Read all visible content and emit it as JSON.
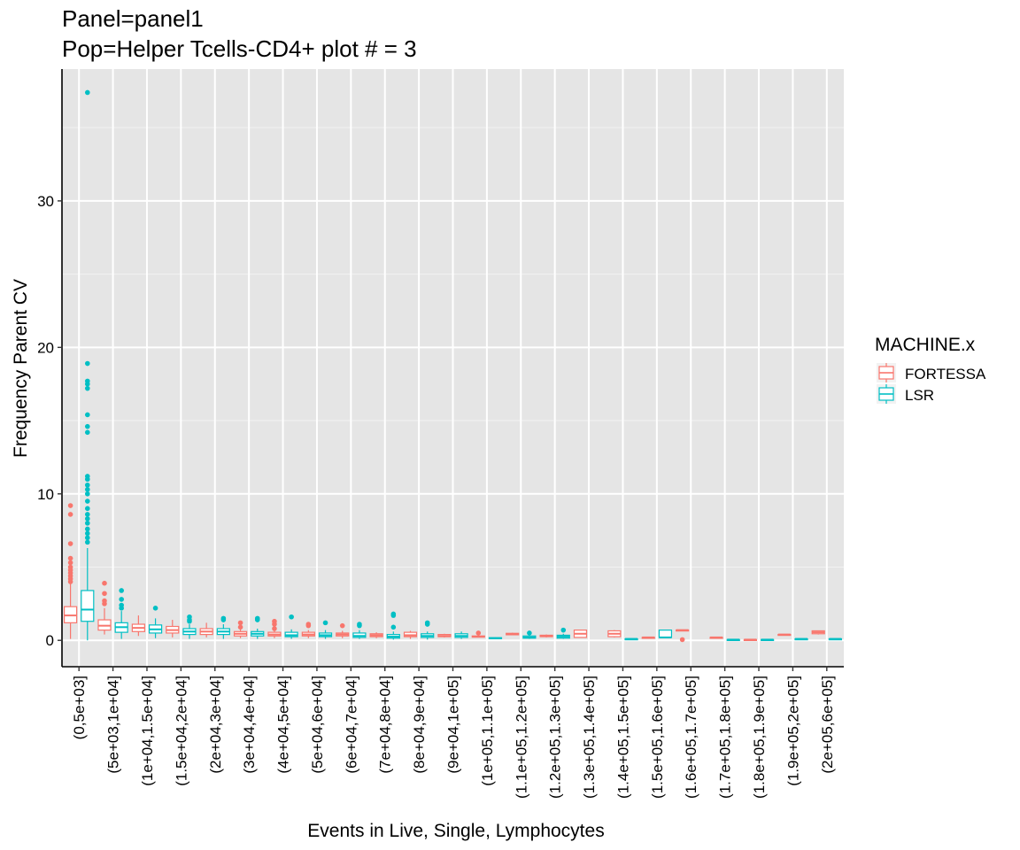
{
  "chart_data": {
    "type": "box",
    "title": "Panel=panel1",
    "subtitle": "Pop=Helper Tcells-CD4+ plot # = 3",
    "xlabel": "Events in Live, Single, Lymphocytes",
    "ylabel": "Frequency Parent CV",
    "ylim": [
      -1.8,
      39
    ],
    "yticks": [
      0,
      10,
      20,
      30
    ],
    "grid": true,
    "legend": {
      "title": "MACHINE.x",
      "position": "right"
    },
    "categories": [
      "(0,5e+03]",
      "(5e+03,1e+04]",
      "(1e+04,1.5e+04]",
      "(1.5e+04,2e+04]",
      "(2e+04,3e+04]",
      "(3e+04,4e+04]",
      "(4e+04,5e+04]",
      "(5e+04,6e+04]",
      "(6e+04,7e+04]",
      "(7e+04,8e+04]",
      "(8e+04,9e+04]",
      "(9e+04,1e+05]",
      "(1e+05,1.1e+05]",
      "(1.1e+05,1.2e+05]",
      "(1.2e+05,1.3e+05]",
      "(1.3e+05,1.4e+05]",
      "(1.4e+05,1.5e+05]",
      "(1.5e+05,1.6e+05]",
      "(1.6e+05,1.7e+05]",
      "(1.7e+05,1.8e+05]",
      "(1.8e+05,1.9e+05]",
      "(1.9e+05,2e+05]",
      "(2e+05,6e+05]"
    ],
    "series": [
      {
        "name": "FORTESSA",
        "color": "#F8766D",
        "boxes": [
          {
            "category": "(0,5e+03]",
            "min": 0.1,
            "q1": 1.2,
            "median": 1.7,
            "q3": 2.3,
            "max": 3.9,
            "outliers": [
              4.0,
              4.2,
              4.4,
              4.6,
              4.8,
              5.0,
              5.3,
              5.6,
              6.6,
              8.6,
              9.2
            ]
          },
          {
            "category": "(5e+03,1e+04]",
            "min": 0.4,
            "q1": 0.7,
            "median": 1.0,
            "q3": 1.4,
            "max": 2.2,
            "outliers": [
              2.5,
              2.7,
              3.2,
              3.9
            ]
          },
          {
            "category": "(1e+04,1.5e+04]",
            "min": 0.3,
            "q1": 0.6,
            "median": 0.85,
            "q3": 1.1,
            "max": 1.7,
            "outliers": []
          },
          {
            "category": "(1.5e+04,2e+04]",
            "min": 0.2,
            "q1": 0.5,
            "median": 0.7,
            "q3": 0.95,
            "max": 1.4,
            "outliers": []
          },
          {
            "category": "(2e+04,3e+04]",
            "min": 0.2,
            "q1": 0.4,
            "median": 0.6,
            "q3": 0.8,
            "max": 1.2,
            "outliers": []
          },
          {
            "category": "(3e+04,4e+04]",
            "min": 0.15,
            "q1": 0.3,
            "median": 0.45,
            "q3": 0.6,
            "max": 0.8,
            "outliers": [
              0.9,
              1.2
            ]
          },
          {
            "category": "(4e+04,5e+04]",
            "min": 0.15,
            "q1": 0.3,
            "median": 0.4,
            "q3": 0.55,
            "max": 0.7,
            "outliers": [
              0.8,
              1.1,
              1.3
            ]
          },
          {
            "category": "(5e+04,6e+04]",
            "min": 0.15,
            "q1": 0.3,
            "median": 0.4,
            "q3": 0.55,
            "max": 0.7,
            "outliers": [
              1.0,
              1.1
            ]
          },
          {
            "category": "(6e+04,7e+04]",
            "min": 0.15,
            "q1": 0.3,
            "median": 0.4,
            "q3": 0.5,
            "max": 0.65,
            "outliers": [
              1.0
            ]
          },
          {
            "category": "(7e+04,8e+04]",
            "min": 0.15,
            "q1": 0.25,
            "median": 0.35,
            "q3": 0.45,
            "max": 0.55,
            "outliers": []
          },
          {
            "category": "(8e+04,9e+04]",
            "min": 0.1,
            "q1": 0.25,
            "median": 0.35,
            "q3": 0.55,
            "max": 0.65,
            "outliers": []
          },
          {
            "category": "(9e+04,1e+05]",
            "min": 0.2,
            "q1": 0.25,
            "median": 0.3,
            "q3": 0.4,
            "max": 0.45,
            "outliers": []
          },
          {
            "category": "(1e+05,1.1e+05]",
            "min": 0.2,
            "q1": 0.22,
            "median": 0.25,
            "q3": 0.3,
            "max": 0.35,
            "outliers": [
              0.5
            ]
          },
          {
            "category": "(1.1e+05,1.2e+05]",
            "min": 0.35,
            "q1": 0.38,
            "median": 0.42,
            "q3": 0.48,
            "max": 0.52,
            "outliers": []
          },
          {
            "category": "(1.2e+05,1.3e+05]",
            "min": 0.2,
            "q1": 0.25,
            "median": 0.3,
            "q3": 0.35,
            "max": 0.4,
            "outliers": []
          },
          {
            "category": "(1.3e+05,1.4e+05]",
            "min": 0.2,
            "q1": 0.2,
            "median": 0.45,
            "q3": 0.7,
            "max": 0.7,
            "outliers": []
          },
          {
            "category": "(1.4e+05,1.5e+05]",
            "min": 0.2,
            "q1": 0.25,
            "median": 0.45,
            "q3": 0.65,
            "max": 0.7,
            "outliers": []
          },
          {
            "category": "(1.5e+05,1.6e+05]",
            "min": 0.2,
            "q1": 0.2,
            "median": 0.2,
            "q3": 0.2,
            "max": 0.2,
            "outliers": []
          },
          {
            "category": "(1.6e+05,1.7e+05]",
            "min": 0.7,
            "q1": 0.7,
            "median": 0.7,
            "q3": 0.7,
            "max": 0.7,
            "outliers": [
              0.05
            ]
          },
          {
            "category": "(1.7e+05,1.8e+05]",
            "min": 0.2,
            "q1": 0.2,
            "median": 0.2,
            "q3": 0.2,
            "max": 0.2,
            "outliers": []
          },
          {
            "category": "(1.8e+05,1.9e+05]",
            "min": 0.05,
            "q1": 0.05,
            "median": 0.05,
            "q3": 0.05,
            "max": 0.05,
            "outliers": []
          },
          {
            "category": "(1.9e+05,2e+05]",
            "min": 0.4,
            "q1": 0.4,
            "median": 0.4,
            "q3": 0.4,
            "max": 0.4,
            "outliers": []
          },
          {
            "category": "(2e+05,6e+05]",
            "min": 0.4,
            "q1": 0.45,
            "median": 0.55,
            "q3": 0.65,
            "max": 0.65,
            "outliers": []
          }
        ]
      },
      {
        "name": "LSR",
        "color": "#00BFC4",
        "boxes": [
          {
            "category": "(0,5e+03]",
            "min": 0.0,
            "q1": 1.3,
            "median": 2.1,
            "q3": 3.4,
            "max": 6.3,
            "outliers": [
              6.7,
              7.0,
              7.3,
              7.6,
              8.0,
              8.3,
              8.6,
              9.0,
              9.5,
              10.0,
              10.3,
              10.6,
              11.0,
              11.2,
              14.2,
              14.6,
              15.4,
              17.2,
              17.5,
              17.7,
              18.9,
              37.4
            ]
          },
          {
            "category": "(5e+03,1e+04]",
            "min": 0.1,
            "q1": 0.55,
            "median": 0.9,
            "q3": 1.2,
            "max": 2.0,
            "outliers": [
              2.2,
              2.4,
              2.8,
              3.4
            ]
          },
          {
            "category": "(1e+04,1.5e+04]",
            "min": 0.15,
            "q1": 0.5,
            "median": 0.75,
            "q3": 1.05,
            "max": 1.5,
            "outliers": [
              2.2
            ]
          },
          {
            "category": "(1.5e+04,2e+04]",
            "min": 0.1,
            "q1": 0.4,
            "median": 0.6,
            "q3": 0.8,
            "max": 1.1,
            "outliers": [
              1.3,
              1.4,
              1.6
            ]
          },
          {
            "category": "(2e+04,3e+04]",
            "min": 0.1,
            "q1": 0.4,
            "median": 0.6,
            "q3": 0.8,
            "max": 1.1,
            "outliers": [
              1.4,
              1.5
            ]
          },
          {
            "category": "(3e+04,4e+04]",
            "min": 0.1,
            "q1": 0.3,
            "median": 0.45,
            "q3": 0.6,
            "max": 0.8,
            "outliers": [
              1.4,
              1.5
            ]
          },
          {
            "category": "(4e+04,5e+04]",
            "min": 0.1,
            "q1": 0.25,
            "median": 0.35,
            "q3": 0.55,
            "max": 0.75,
            "outliers": [
              1.6
            ]
          },
          {
            "category": "(5e+04,6e+04]",
            "min": 0.1,
            "q1": 0.25,
            "median": 0.35,
            "q3": 0.5,
            "max": 0.7,
            "outliers": [
              1.2
            ]
          },
          {
            "category": "(6e+04,7e+04]",
            "min": 0.1,
            "q1": 0.2,
            "median": 0.3,
            "q3": 0.5,
            "max": 0.7,
            "outliers": [
              1.0,
              1.1
            ]
          },
          {
            "category": "(7e+04,8e+04]",
            "min": 0.05,
            "q1": 0.15,
            "median": 0.25,
            "q3": 0.4,
            "max": 0.6,
            "outliers": [
              0.9,
              1.7,
              1.8
            ]
          },
          {
            "category": "(8e+04,9e+04]",
            "min": 0.05,
            "q1": 0.2,
            "median": 0.3,
            "q3": 0.45,
            "max": 0.6,
            "outliers": [
              1.1,
              1.2
            ]
          },
          {
            "category": "(9e+04,1e+05]",
            "min": 0.1,
            "q1": 0.2,
            "median": 0.3,
            "q3": 0.45,
            "max": 0.6,
            "outliers": []
          },
          {
            "category": "(1e+05,1.1e+05]",
            "min": 0.1,
            "q1": 0.12,
            "median": 0.15,
            "q3": 0.18,
            "max": 0.2,
            "outliers": []
          },
          {
            "category": "(1.1e+05,1.2e+05]",
            "min": 0.1,
            "q1": 0.15,
            "median": 0.2,
            "q3": 0.3,
            "max": 0.4,
            "outliers": [
              0.5
            ]
          },
          {
            "category": "(1.2e+05,1.3e+05]",
            "min": 0.1,
            "q1": 0.15,
            "median": 0.25,
            "q3": 0.35,
            "max": 0.45,
            "outliers": [
              0.7
            ]
          },
          {
            "category": "(1.3e+05,1.4e+05]",
            "min": null,
            "q1": null,
            "median": null,
            "q3": null,
            "max": null,
            "outliers": []
          },
          {
            "category": "(1.4e+05,1.5e+05]",
            "min": 0.1,
            "q1": 0.1,
            "median": 0.1,
            "q3": 0.1,
            "max": 0.1,
            "outliers": []
          },
          {
            "category": "(1.5e+05,1.6e+05]",
            "min": 0.2,
            "q1": 0.2,
            "median": 0.2,
            "q3": 0.7,
            "max": 0.7,
            "outliers": []
          },
          {
            "category": "(1.6e+05,1.7e+05]",
            "min": null,
            "q1": null,
            "median": null,
            "q3": null,
            "max": null,
            "outliers": []
          },
          {
            "category": "(1.7e+05,1.8e+05]",
            "min": 0.05,
            "q1": 0.05,
            "median": 0.05,
            "q3": 0.05,
            "max": 0.05,
            "outliers": []
          },
          {
            "category": "(1.8e+05,1.9e+05]",
            "min": 0.05,
            "q1": 0.05,
            "median": 0.05,
            "q3": 0.05,
            "max": 0.05,
            "outliers": []
          },
          {
            "category": "(1.9e+05,2e+05]",
            "min": 0.1,
            "q1": 0.1,
            "median": 0.1,
            "q3": 0.1,
            "max": 0.1,
            "outliers": []
          },
          {
            "category": "(2e+05,6e+05]",
            "min": 0.1,
            "q1": 0.1,
            "median": 0.1,
            "q3": 0.1,
            "max": 0.1,
            "outliers": []
          }
        ]
      }
    ]
  }
}
